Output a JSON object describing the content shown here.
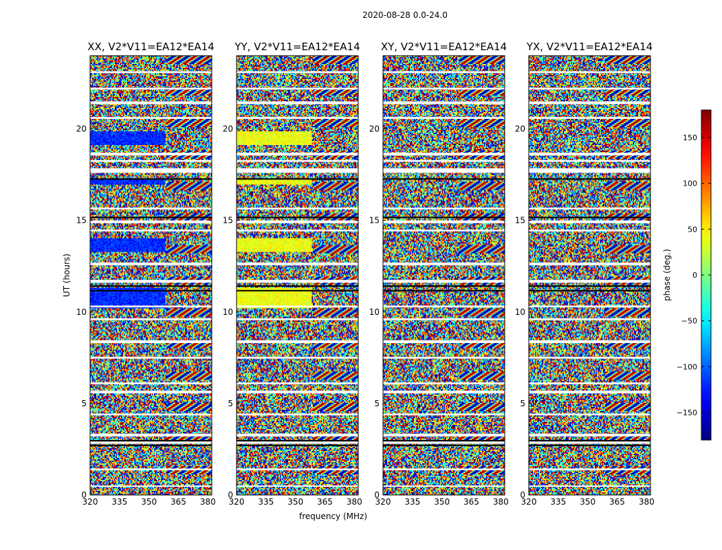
{
  "figure_title": "2020-08-28 0.0-24.0",
  "chart_data": [
    {
      "type": "heatmap",
      "title": "XX, V2*V11=EA12*EA14",
      "xlabel": "",
      "ylabel": "UT (hours)",
      "xlim": [
        320,
        382
      ],
      "ylim": [
        0,
        24
      ],
      "xticks": [
        320,
        335,
        350,
        365,
        380
      ],
      "yticks": [
        0,
        5,
        10,
        15,
        20
      ],
      "coherent_bands_hours": [
        [
          19.1,
          19.9
        ],
        [
          16.95,
          17.25
        ],
        [
          13.3,
          14.0
        ],
        [
          10.2,
          11.3
        ]
      ],
      "coherent_phase_deg": -120
    },
    {
      "type": "heatmap",
      "title": "YY, V2*V11=EA12*EA14",
      "xlabel": "frequency (MHz)",
      "ylabel": "",
      "xlim": [
        320,
        382
      ],
      "ylim": [
        0,
        24
      ],
      "xticks": [
        320,
        335,
        350,
        365,
        380
      ],
      "yticks": [
        0,
        5,
        10,
        15,
        20
      ],
      "coherent_bands_hours": [
        [
          19.1,
          19.9
        ],
        [
          16.95,
          17.25
        ],
        [
          13.3,
          14.0
        ],
        [
          10.2,
          11.3
        ]
      ],
      "coherent_phase_deg": 40
    },
    {
      "type": "heatmap",
      "title": "XY, V2*V11=EA12*EA14",
      "xlabel": "",
      "ylabel": "",
      "xlim": [
        320,
        382
      ],
      "ylim": [
        0,
        24
      ],
      "xticks": [
        320,
        335,
        350,
        365,
        380
      ],
      "yticks": [
        0,
        5,
        10,
        15,
        20
      ],
      "coherent_bands_hours": [],
      "coherent_phase_deg": 0
    },
    {
      "type": "heatmap",
      "title": "YX, V2*V11=EA12*EA14",
      "xlabel": "",
      "ylabel": "",
      "xlim": [
        320,
        382
      ],
      "ylim": [
        0,
        24
      ],
      "xticks": [
        320,
        335,
        350,
        365,
        380
      ],
      "yticks": [
        0,
        5,
        10,
        15,
        20
      ],
      "coherent_bands_hours": [],
      "coherent_phase_deg": 0
    }
  ],
  "colorbar": {
    "label": "phase (deg.)",
    "range": [
      -180,
      180
    ],
    "ticks": [
      150,
      100,
      50,
      0,
      -50,
      -100,
      -150
    ],
    "colormap": "jet"
  },
  "flagged_gaps_hours": [
    [
      23.05,
      23.15
    ],
    [
      22.15,
      22.25
    ],
    [
      21.35,
      21.5
    ],
    [
      20.55,
      20.65
    ],
    [
      18.55,
      18.7
    ],
    [
      18.2,
      18.3
    ],
    [
      17.6,
      17.85
    ],
    [
      15.6,
      15.7
    ],
    [
      14.85,
      15.0
    ],
    [
      14.4,
      14.5
    ],
    [
      12.55,
      12.7
    ],
    [
      11.6,
      11.75
    ],
    [
      10.25,
      10.35
    ],
    [
      9.55,
      9.65
    ],
    [
      8.3,
      8.45
    ],
    [
      7.45,
      7.55
    ],
    [
      6.05,
      6.15
    ],
    [
      5.55,
      5.7
    ],
    [
      4.35,
      4.45
    ],
    [
      3.2,
      3.35
    ],
    [
      2.8,
      2.95
    ],
    [
      1.35,
      1.45
    ],
    [
      0.45,
      0.52
    ]
  ],
  "dark_lines_hours": [
    11.45,
    11.2,
    3.0,
    2.75,
    17.3,
    15.2
  ]
}
